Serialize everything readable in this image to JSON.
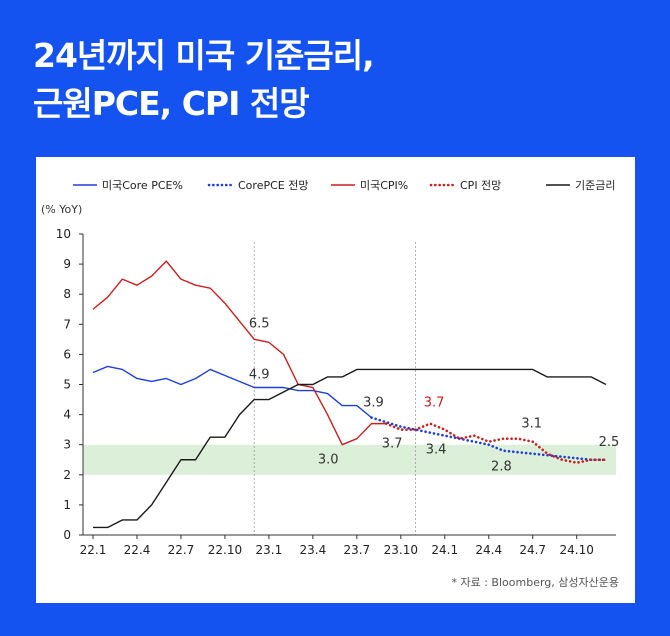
{
  "heading": {
    "line1": "24년까지 미국 기준금리,",
    "line2": "근원PCE, CPI 전망"
  },
  "source": "* 자료 : Bloomberg, 삼성자산운용",
  "colors": {
    "background": "#1553f0",
    "core_pce": "#1f3fd8",
    "core_pce_forecast": "#1f3fd8",
    "cpi": "#c8201e",
    "cpi_forecast": "#c8201e",
    "policy_rate": "#1a1a1a",
    "target_band": "#dcefd9"
  },
  "chart_data": {
    "type": "line",
    "ylabel": "(% YoY)",
    "ylim": [
      0,
      10
    ],
    "yticks": [
      "0",
      "1",
      "2",
      "3",
      "4",
      "5",
      "6",
      "7",
      "8",
      "9",
      "10"
    ],
    "xticks": [
      "22.1",
      "22.4",
      "22.7",
      "22.10",
      "23.1",
      "23.4",
      "23.7",
      "23.10",
      "24.1",
      "24.4",
      "24.7",
      "24.10"
    ],
    "x_range": [
      "2022-01",
      "2024-12"
    ],
    "grid": false,
    "legend_position": "top",
    "highlight_band": [
      2,
      3
    ],
    "reference_lines": [
      "2022-12",
      "2023-11"
    ],
    "series": [
      {
        "name": "미국Core PCE%",
        "style": "solid",
        "color_key": "core_pce",
        "points": [
          [
            "2022-01",
            5.4
          ],
          [
            "2022-02",
            5.6
          ],
          [
            "2022-03",
            5.5
          ],
          [
            "2022-04",
            5.2
          ],
          [
            "2022-05",
            5.1
          ],
          [
            "2022-06",
            5.2
          ],
          [
            "2022-07",
            5.0
          ],
          [
            "2022-08",
            5.2
          ],
          [
            "2022-09",
            5.5
          ],
          [
            "2022-10",
            5.3
          ],
          [
            "2022-11",
            5.1
          ],
          [
            "2022-12",
            4.9
          ],
          [
            "2023-01",
            4.9
          ],
          [
            "2023-02",
            4.9
          ],
          [
            "2023-03",
            4.8
          ],
          [
            "2023-04",
            4.8
          ],
          [
            "2023-05",
            4.7
          ],
          [
            "2023-06",
            4.3
          ],
          [
            "2023-07",
            4.3
          ],
          [
            "2023-08",
            3.9
          ]
        ]
      },
      {
        "name": "CorePCE 전망",
        "style": "dotted",
        "color_key": "core_pce_forecast",
        "points": [
          [
            "2023-08",
            3.9
          ],
          [
            "2023-10",
            3.6
          ],
          [
            "2023-12",
            3.4
          ],
          [
            "2024-02",
            3.2
          ],
          [
            "2024-04",
            3.0
          ],
          [
            "2024-05",
            2.8
          ],
          [
            "2024-07",
            2.7
          ],
          [
            "2024-09",
            2.6
          ],
          [
            "2024-11",
            2.5
          ],
          [
            "2024-12",
            2.5
          ]
        ]
      },
      {
        "name": "미국CPI%",
        "style": "solid",
        "color_key": "cpi",
        "points": [
          [
            "2022-01",
            7.5
          ],
          [
            "2022-02",
            7.9
          ],
          [
            "2022-03",
            8.5
          ],
          [
            "2022-04",
            8.3
          ],
          [
            "2022-05",
            8.6
          ],
          [
            "2022-06",
            9.1
          ],
          [
            "2022-07",
            8.5
          ],
          [
            "2022-08",
            8.3
          ],
          [
            "2022-09",
            8.2
          ],
          [
            "2022-10",
            7.7
          ],
          [
            "2022-11",
            7.1
          ],
          [
            "2022-12",
            6.5
          ],
          [
            "2023-01",
            6.4
          ],
          [
            "2023-02",
            6.0
          ],
          [
            "2023-03",
            5.0
          ],
          [
            "2023-04",
            4.9
          ],
          [
            "2023-05",
            4.0
          ],
          [
            "2023-06",
            3.0
          ],
          [
            "2023-07",
            3.2
          ],
          [
            "2023-08",
            3.7
          ],
          [
            "2023-09",
            3.7
          ]
        ]
      },
      {
        "name": "CPI 전망",
        "style": "dotted",
        "color_key": "cpi_forecast",
        "points": [
          [
            "2023-09",
            3.7
          ],
          [
            "2023-10",
            3.5
          ],
          [
            "2023-11",
            3.5
          ],
          [
            "2023-12",
            3.7
          ],
          [
            "2024-01",
            3.5
          ],
          [
            "2024-02",
            3.2
          ],
          [
            "2024-03",
            3.3
          ],
          [
            "2024-04",
            3.1
          ],
          [
            "2024-05",
            3.2
          ],
          [
            "2024-06",
            3.2
          ],
          [
            "2024-07",
            3.1
          ],
          [
            "2024-08",
            2.7
          ],
          [
            "2024-09",
            2.5
          ],
          [
            "2024-10",
            2.4
          ],
          [
            "2024-11",
            2.5
          ],
          [
            "2024-12",
            2.5
          ]
        ]
      },
      {
        "name": "기준금리",
        "style": "solid",
        "color_key": "policy_rate",
        "points": [
          [
            "2022-01",
            0.25
          ],
          [
            "2022-02",
            0.25
          ],
          [
            "2022-03",
            0.5
          ],
          [
            "2022-04",
            0.5
          ],
          [
            "2022-05",
            1.0
          ],
          [
            "2022-06",
            1.75
          ],
          [
            "2022-07",
            2.5
          ],
          [
            "2022-08",
            2.5
          ],
          [
            "2022-09",
            3.25
          ],
          [
            "2022-10",
            3.25
          ],
          [
            "2022-11",
            4.0
          ],
          [
            "2022-12",
            4.5
          ],
          [
            "2023-01",
            4.5
          ],
          [
            "2023-02",
            4.75
          ],
          [
            "2023-03",
            5.0
          ],
          [
            "2023-04",
            5.0
          ],
          [
            "2023-05",
            5.25
          ],
          [
            "2023-06",
            5.25
          ],
          [
            "2023-07",
            5.5
          ],
          [
            "2023-08",
            5.5
          ],
          [
            "2023-09",
            5.5
          ],
          [
            "2023-10",
            5.5
          ],
          [
            "2023-11",
            5.5
          ],
          [
            "2023-12",
            5.5
          ],
          [
            "2024-01",
            5.5
          ],
          [
            "2024-02",
            5.5
          ],
          [
            "2024-03",
            5.5
          ],
          [
            "2024-04",
            5.5
          ],
          [
            "2024-05",
            5.5
          ],
          [
            "2024-06",
            5.5
          ],
          [
            "2024-07",
            5.5
          ],
          [
            "2024-08",
            5.25
          ],
          [
            "2024-09",
            5.25
          ],
          [
            "2024-10",
            5.25
          ],
          [
            "2024-11",
            5.25
          ],
          [
            "2024-12",
            5.0
          ]
        ]
      }
    ],
    "annotations": [
      {
        "text": "6.5",
        "at": [
          "2022-12",
          6.5
        ],
        "color_key": "dark"
      },
      {
        "text": "4.9",
        "at": [
          "2022-12",
          4.9
        ],
        "color_key": "dark"
      },
      {
        "text": "3.9",
        "at": [
          "2023-08",
          3.9
        ],
        "color_key": "dark"
      },
      {
        "text": "3.0",
        "at": [
          "2023-06",
          3.0
        ],
        "color_key": "dark"
      },
      {
        "text": "3.7",
        "at": [
          "2023-09",
          3.7
        ],
        "color_key": "dark"
      },
      {
        "text": "3.7",
        "at": [
          "2023-12",
          3.7
        ],
        "color_key": "red"
      },
      {
        "text": "3.4",
        "at": [
          "2023-12",
          3.4
        ],
        "color_key": "dark"
      },
      {
        "text": "2.8",
        "at": [
          "2024-05",
          2.8
        ],
        "color_key": "dark"
      },
      {
        "text": "3.1",
        "at": [
          "2024-07",
          3.1
        ],
        "color_key": "dark"
      },
      {
        "text": "2.5",
        "at": [
          "2024-12",
          2.5
        ],
        "color_key": "dark"
      }
    ]
  }
}
